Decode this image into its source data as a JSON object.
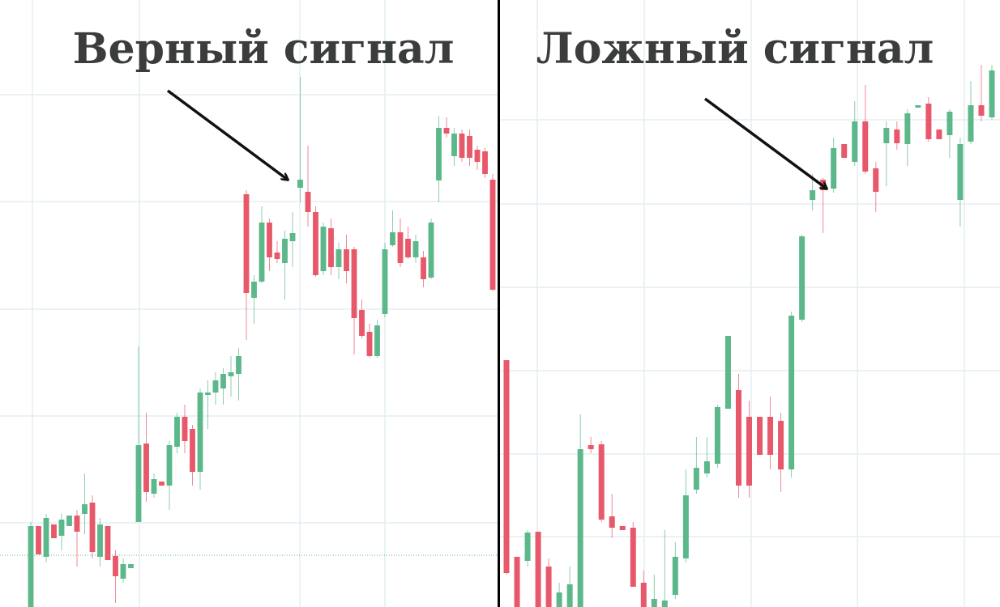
{
  "chart_data": [
    {
      "type": "candlestick",
      "title": "Верный сигнал",
      "up_color": "#5cb88a",
      "down_color": "#e8586b",
      "grid": true,
      "ylim": [
        0,
        750
      ],
      "yticks": [
        104,
        236,
        368,
        501,
        633
      ],
      "open": [
        0,
        100,
        62,
        102,
        88,
        100,
        113,
        115,
        129,
        62,
        100,
        63,
        35,
        48,
        105,
        202,
        140,
        155,
        150,
        198,
        235,
        220,
        167,
        262,
        265,
        270,
        285,
        288,
        510,
        382,
        402,
        475,
        438,
        425,
        452,
        518,
        513,
        488,
        415,
        468,
        420,
        442,
        442,
        367,
        340,
        310,
        362,
        447,
        463,
        455,
        432,
        432,
        407,
        527,
        592,
        557,
        585,
        582,
        565,
        563,
        528
      ],
      "high": [
        105,
        100,
        115,
        102,
        115,
        113,
        120,
        165,
        138,
        110,
        100,
        70,
        60,
        53,
        322,
        240,
        165,
        155,
        205,
        240,
        250,
        225,
        270,
        280,
        290,
        295,
        310,
        320,
        515,
        410,
        495,
        480,
        452,
        465,
        488,
        655,
        570,
        495,
        475,
        480,
        450,
        460,
        445,
        380,
        350,
        355,
        450,
        490,
        480,
        470,
        460,
        440,
        480,
        607,
        605,
        592,
        590,
        590,
        570,
        567,
        535
      ],
      "low": [
        0,
        65,
        55,
        85,
        70,
        100,
        50,
        90,
        60,
        50,
        58,
        5,
        30,
        48,
        105,
        130,
        135,
        150,
        120,
        190,
        190,
        150,
        145,
        220,
        250,
        250,
        260,
        255,
        330,
        350,
        400,
        415,
        425,
        380,
        420,
        500,
        470,
        408,
        410,
        410,
        405,
        400,
        312,
        332,
        308,
        308,
        358,
        445,
        420,
        430,
        425,
        395,
        405,
        500,
        580,
        545,
        550,
        545,
        540,
        530,
        390
      ],
      "close": [
        100,
        65,
        110,
        85,
        108,
        113,
        93,
        127,
        68,
        102,
        58,
        38,
        53,
        53,
        200,
        142,
        158,
        150,
        200,
        235,
        205,
        167,
        265,
        265,
        280,
        288,
        290,
        310,
        388,
        402,
        475,
        432,
        430,
        455,
        462,
        528,
        488,
        410,
        470,
        420,
        442,
        415,
        357,
        335,
        310,
        348,
        442,
        463,
        425,
        432,
        452,
        405,
        475,
        592,
        585,
        585,
        555,
        555,
        550,
        535,
        392
      ]
    },
    {
      "type": "candlestick",
      "title": "Ложный сигнал",
      "up_color": "#5cb88a",
      "down_color": "#e8586b",
      "grid": true,
      "ylim": [
        0,
        750
      ],
      "yticks": [
        87,
        189,
        292,
        395,
        498,
        602
      ],
      "open": [
        305,
        62,
        57,
        93,
        50,
        0,
        0,
        0,
        200,
        201,
        112,
        100,
        98,
        30,
        0,
        0,
        15,
        60,
        145,
        165,
        177,
        245,
        268,
        235,
        235,
        235,
        230,
        170,
        355,
        503,
        528,
        517,
        572,
        550,
        600,
        542,
        573,
        590,
        572,
        617,
        622,
        590,
        583,
        503,
        575,
        620,
        605
      ],
      "high": [
        305,
        62,
        95,
        93,
        60,
        30,
        50,
        238,
        210,
        205,
        140,
        100,
        105,
        45,
        40,
        95,
        80,
        170,
        210,
        210,
        250,
        335,
        288,
        255,
        235,
        260,
        240,
        365,
        460,
        535,
        530,
        580,
        572,
        625,
        645,
        550,
        600,
        600,
        615,
        620,
        630,
        590,
        615,
        580,
        650,
        670,
        670
      ],
      "low": [
        40,
        0,
        50,
        0,
        0,
        0,
        0,
        0,
        190,
        105,
        85,
        95,
        25,
        0,
        0,
        0,
        10,
        55,
        140,
        160,
        172,
        245,
        135,
        135,
        188,
        170,
        142,
        160,
        352,
        490,
        462,
        512,
        555,
        545,
        535,
        488,
        520,
        565,
        545,
        617,
        575,
        578,
        555,
        470,
        572,
        600,
        602
      ],
      "close": [
        42,
        0,
        92,
        0,
        0,
        18,
        28,
        195,
        195,
        108,
        98,
        95,
        25,
        0,
        10,
        8,
        62,
        138,
        172,
        180,
        247,
        335,
        150,
        150,
        188,
        188,
        170,
        360,
        458,
        515,
        515,
        567,
        555,
        600,
        538,
        513,
        592,
        573,
        610,
        620,
        578,
        578,
        612,
        572,
        620,
        607,
        663
      ]
    }
  ]
}
